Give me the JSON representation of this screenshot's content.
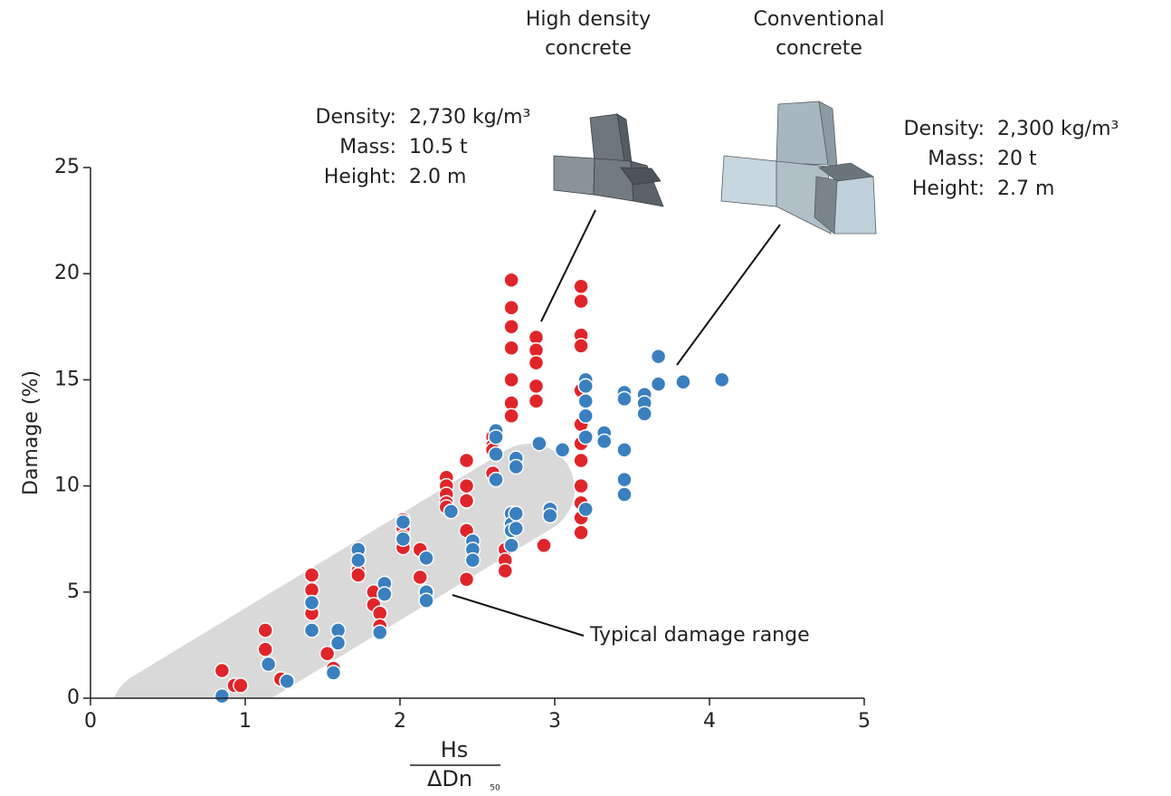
{
  "chart_data": {
    "type": "scatter",
    "y_label": "Damage (%)",
    "x_label": {
      "numerator": "Hs",
      "denominator": "ΔDn",
      "subscript": "50"
    },
    "xlim": [
      0,
      5
    ],
    "xticks": [
      0,
      1,
      2,
      3,
      4,
      5
    ],
    "ylim": [
      0,
      25
    ],
    "yticks": [
      0,
      5,
      10,
      15,
      20,
      25
    ],
    "band_label": "Typical damage range",
    "series": [
      {
        "name": "High density concrete",
        "color": "#e0252a",
        "specs": [
          {
            "label": "Density:",
            "value": "2,730 kg/m³"
          },
          {
            "label": "Mass:",
            "value": "10.5 t"
          },
          {
            "label": "Height:",
            "value": "2.0 m"
          }
        ],
        "x": [
          0.85,
          0.93,
          0.97,
          1.13,
          1.13,
          1.23,
          1.43,
          1.43,
          1.43,
          1.53,
          1.57,
          1.73,
          1.73,
          1.83,
          1.83,
          1.87,
          1.87,
          2.02,
          2.02,
          2.02,
          2.02,
          2.13,
          2.13,
          2.17,
          2.3,
          2.3,
          2.3,
          2.3,
          2.3,
          2.43,
          2.43,
          2.43,
          2.43,
          2.43,
          2.6,
          2.6,
          2.6,
          2.6,
          2.68,
          2.68,
          2.68,
          2.72,
          2.72,
          2.72,
          2.72,
          2.72,
          2.72,
          2.72,
          2.88,
          2.88,
          2.88,
          2.88,
          2.88,
          2.93,
          3.17,
          3.17,
          3.17,
          3.17,
          3.17,
          3.17,
          3.17,
          3.17,
          3.17,
          3.17,
          3.17,
          3.17
        ],
        "values": [
          1.3,
          0.6,
          0.6,
          3.2,
          2.3,
          0.9,
          5.8,
          5.1,
          4.0,
          2.1,
          1.4,
          6.0,
          5.8,
          5.0,
          4.4,
          4.0,
          3.4,
          8.4,
          8.0,
          7.6,
          7.1,
          7.0,
          5.7,
          5.0,
          10.4,
          10.0,
          9.6,
          9.2,
          9.0,
          11.2,
          10.0,
          9.3,
          7.9,
          5.6,
          12.3,
          11.9,
          11.7,
          10.6,
          7.0,
          6.5,
          6.0,
          19.7,
          18.4,
          17.5,
          16.5,
          15.0,
          13.9,
          13.3,
          17.0,
          16.4,
          15.8,
          14.7,
          14.0,
          7.2,
          19.4,
          18.7,
          17.1,
          16.6,
          14.5,
          12.9,
          12.0,
          11.2,
          10.0,
          9.2,
          8.5,
          7.8
        ]
      },
      {
        "name": "Conventional concrete",
        "color": "#3a7fbf",
        "specs": [
          {
            "label": "Density:",
            "value": "2,300 kg/m³"
          },
          {
            "label": "Mass:",
            "value": "20 t"
          },
          {
            "label": "Height:",
            "value": "2.7 m"
          }
        ],
        "x": [
          0.85,
          1.15,
          1.27,
          1.43,
          1.43,
          1.57,
          1.6,
          1.6,
          1.73,
          1.73,
          1.87,
          1.9,
          1.9,
          2.02,
          2.02,
          2.17,
          2.17,
          2.17,
          2.33,
          2.47,
          2.47,
          2.47,
          2.62,
          2.62,
          2.62,
          2.62,
          2.72,
          2.72,
          2.72,
          2.72,
          2.75,
          2.75,
          2.75,
          2.75,
          2.9,
          2.97,
          2.97,
          3.05,
          3.2,
          3.2,
          3.2,
          3.2,
          3.2,
          3.2,
          3.32,
          3.32,
          3.45,
          3.45,
          3.45,
          3.45,
          3.45,
          3.58,
          3.58,
          3.58,
          3.67,
          3.67,
          3.83,
          4.08
        ],
        "values": [
          0.1,
          1.6,
          0.8,
          4.5,
          3.2,
          1.2,
          3.2,
          2.6,
          7.0,
          6.5,
          3.1,
          5.4,
          4.9,
          8.3,
          7.5,
          6.6,
          5.0,
          4.6,
          8.8,
          7.4,
          7.0,
          6.5,
          12.6,
          12.3,
          11.5,
          10.3,
          8.7,
          8.2,
          7.9,
          7.2,
          11.3,
          10.9,
          8.7,
          8.0,
          12.0,
          8.9,
          8.6,
          11.7,
          15.0,
          14.7,
          14.0,
          13.3,
          12.3,
          8.9,
          12.5,
          12.1,
          14.4,
          14.1,
          11.7,
          10.3,
          9.6,
          14.3,
          13.9,
          13.4,
          16.1,
          14.8,
          14.9,
          15.0
        ]
      }
    ]
  }
}
